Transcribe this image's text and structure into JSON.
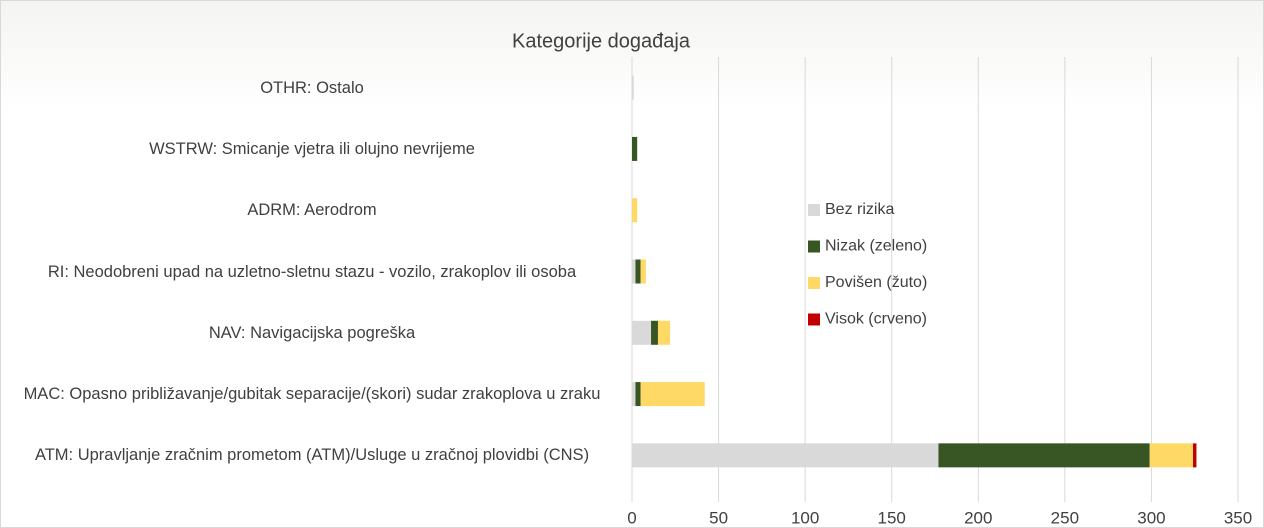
{
  "chart_data": {
    "type": "stacked-bar-horizontal",
    "title": "Kategorije događaja",
    "categories": [
      "OTHR: Ostalo",
      "WSTRW: Smicanje vjetra ili olujno nevrijeme",
      "ADRM: Aerodrom",
      "RI: Neodobreni upad na uzletno-sletnu stazu - vozilo, zrakoplov ili osoba",
      "NAV: Navigacijska pogreška",
      "MAC: Opasno približavanje/gubitak separacije/(skori) sudar zrakoplova u zraku",
      "ATM: Upravljanje zračnim prometom (ATM)/Usluge u zračnoj plovidbi (CNS)"
    ],
    "series": [
      {
        "name": "Bez rizika",
        "color": "#d9d9d9",
        "values": [
          1,
          0,
          0,
          2,
          11,
          2,
          177
        ]
      },
      {
        "name": "Nizak (zeleno)",
        "color": "#375623",
        "values": [
          0,
          3,
          0,
          3,
          4,
          3,
          122
        ]
      },
      {
        "name": "Povišen (žuto)",
        "color": "#ffd966",
        "values": [
          0,
          0,
          3,
          3,
          7,
          37,
          25
        ]
      },
      {
        "name": "Visok (crveno)",
        "color": "#c00000",
        "values": [
          0,
          0,
          0,
          0,
          0,
          0,
          2
        ]
      }
    ],
    "xlim": [
      0,
      350
    ],
    "xticks": [
      0,
      50,
      100,
      150,
      200,
      250,
      300,
      350
    ],
    "grid": true,
    "legend": "center"
  }
}
